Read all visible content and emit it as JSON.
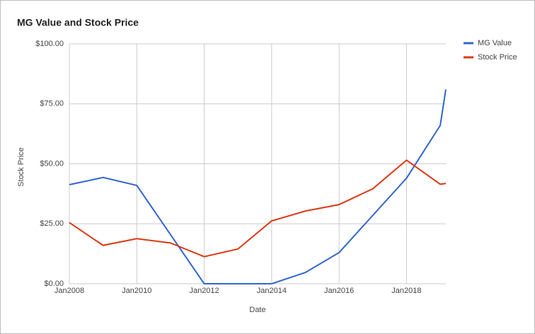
{
  "chart_data": {
    "type": "line",
    "title": "MG Value and Stock Price",
    "x_label": "Date",
    "y_label": "Stock Price",
    "x": [
      "2008-01",
      "2009-01",
      "2010-01",
      "2011-01",
      "2012-01",
      "2013-01",
      "2014-01",
      "2015-01",
      "2016-01",
      "2017-01",
      "2018-01",
      "2019-01",
      "2019-03"
    ],
    "series": [
      {
        "name": "MG Value",
        "color": "#3366cc",
        "values": [
          41.3,
          44.3,
          41,
          20.5,
          0,
          0,
          0,
          4.7,
          13,
          28.5,
          44,
          66,
          81
        ]
      },
      {
        "name": "Stock Price",
        "color": "#dc3912",
        "values": [
          25.5,
          16,
          18.8,
          17,
          11.3,
          14.5,
          26.2,
          30.3,
          33,
          39.6,
          51.5,
          41.5,
          41.8
        ]
      }
    ],
    "xlim": [
      "2008-01",
      "2019-03"
    ],
    "xticks": [
      {
        "value": "2008-01",
        "label": "Jan2008"
      },
      {
        "value": "2010-01",
        "label": "Jan2010"
      },
      {
        "value": "2012-01",
        "label": "Jan2012"
      },
      {
        "value": "2014-01",
        "label": "Jan2014"
      },
      {
        "value": "2016-01",
        "label": "Jan2016"
      },
      {
        "value": "2018-01",
        "label": "Jan2018"
      }
    ],
    "ylim": [
      0,
      100
    ],
    "yticks": [
      {
        "value": 0,
        "label": "$0.00"
      },
      {
        "value": 25,
        "label": "$25.00"
      },
      {
        "value": 50,
        "label": "$50.00"
      },
      {
        "value": 75,
        "label": "$75.00"
      },
      {
        "value": 100,
        "label": "$100.00"
      }
    ],
    "grid": true,
    "legend": "right"
  }
}
